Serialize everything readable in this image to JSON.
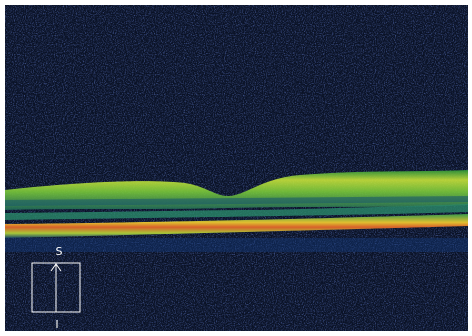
{
  "orientation": {
    "superior": "S",
    "inferior": "I"
  }
}
